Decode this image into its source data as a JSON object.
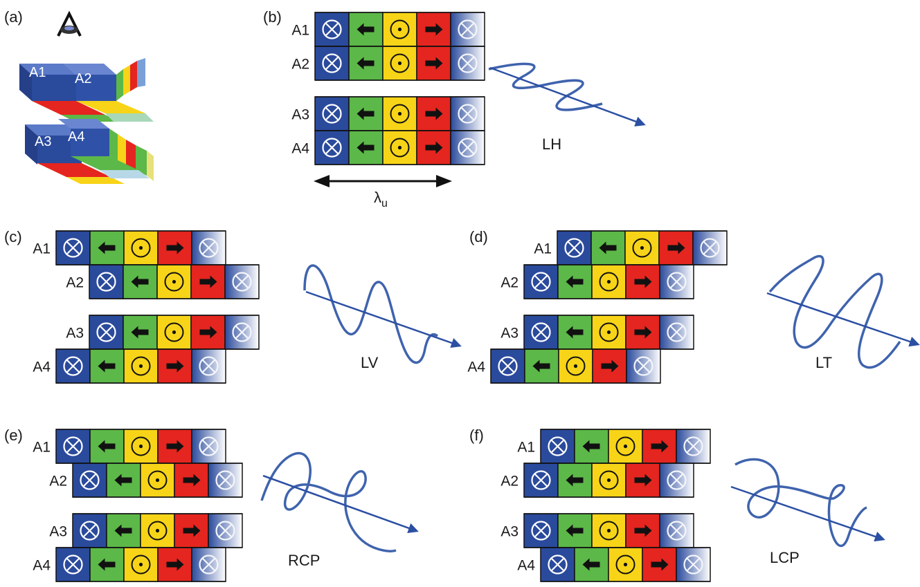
{
  "colors": {
    "blue": "#2a4a9c",
    "green": "#5cb848",
    "yellow": "#f7d418",
    "red": "#e5251f",
    "wave": "#3f63ad",
    "arrow": "#2b4fa3",
    "border": "#111111"
  },
  "panels": [
    {
      "id": "a",
      "label": "(a)",
      "eye_icon": "eye-icon",
      "block_labels": [
        "A1",
        "A2",
        "A3",
        "A4"
      ]
    },
    {
      "id": "b",
      "label": "(b)",
      "rows": [
        {
          "label": "A1",
          "shift": 0
        },
        {
          "label": "A2",
          "shift": 0
        },
        {
          "label": "A3",
          "shift": 0
        },
        {
          "label": "A4",
          "shift": 0
        }
      ],
      "period_label": "λ",
      "period_subscript": "u",
      "polarization": "LH",
      "wave": "horizontal"
    },
    {
      "id": "c",
      "label": "(c)",
      "rows": [
        {
          "label": "A1",
          "shift": 0
        },
        {
          "label": "A2",
          "shift": 2
        },
        {
          "label": "A3",
          "shift": 2
        },
        {
          "label": "A4",
          "shift": 0
        }
      ],
      "polarization": "LV",
      "wave": "vertical"
    },
    {
      "id": "d",
      "label": "(d)",
      "rows": [
        {
          "label": "A1",
          "shift": 4
        },
        {
          "label": "A2",
          "shift": 2
        },
        {
          "label": "A3",
          "shift": 2
        },
        {
          "label": "A4",
          "shift": 0
        }
      ],
      "polarization": "LT",
      "wave": "tilted"
    },
    {
      "id": "e",
      "label": "(e)",
      "rows": [
        {
          "label": "A1",
          "shift": 0
        },
        {
          "label": "A2",
          "shift": 1
        },
        {
          "label": "A3",
          "shift": 1
        },
        {
          "label": "A4",
          "shift": 0
        }
      ],
      "polarization": "RCP",
      "wave": "helix-right"
    },
    {
      "id": "f",
      "label": "(f)",
      "rows": [
        {
          "label": "A1",
          "shift": 1
        },
        {
          "label": "A2",
          "shift": 0
        },
        {
          "label": "A3",
          "shift": 0
        },
        {
          "label": "A4",
          "shift": 1
        }
      ],
      "polarization": "LCP",
      "wave": "helix-left"
    }
  ],
  "block_sequence": [
    "x-in-circle-icon",
    "arrow-left-icon",
    "dot-in-circle-icon",
    "arrow-right-icon",
    "x-in-circle-icon"
  ]
}
